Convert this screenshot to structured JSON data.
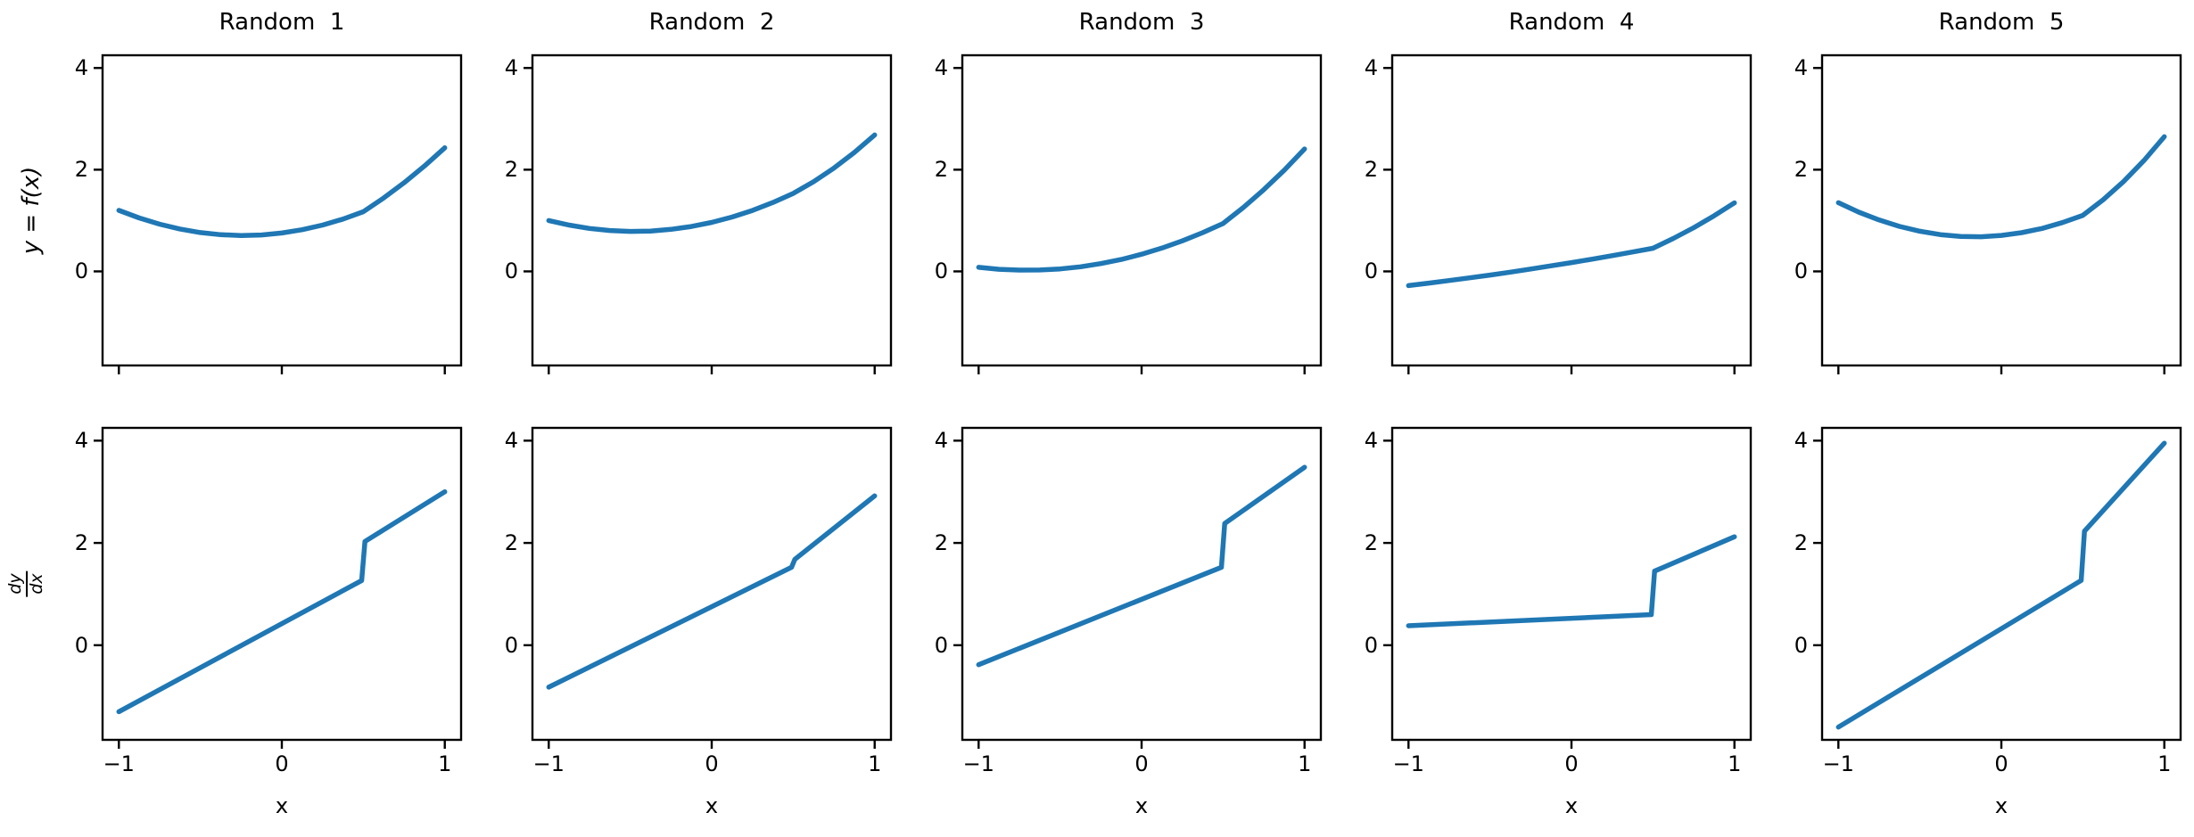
{
  "figure": {
    "background_color": "#ffffff",
    "axis_color": "#000000",
    "line_color": "#1f77b4",
    "rows": 2,
    "cols": 5
  },
  "chart_data": [
    {
      "type": "line",
      "row": 0,
      "col": 0,
      "title": "Random  1",
      "ylabel": "y = f(x)",
      "xlim": [
        -1.1,
        1.1
      ],
      "ylim": [
        -1.85,
        4.25
      ],
      "xticks": [
        -1,
        0,
        1
      ],
      "yticks": [
        0,
        2,
        4
      ],
      "xtick_labels": [
        "−1",
        "0",
        "1"
      ],
      "ytick_labels": [
        "0",
        "2",
        "4"
      ],
      "x": [
        -1,
        -0.875,
        -0.75,
        -0.625,
        -0.5,
        -0.375,
        -0.25,
        -0.125,
        0,
        0.125,
        0.25,
        0.375,
        0.5,
        0.625,
        0.75,
        0.875,
        1
      ],
      "y": [
        1.2,
        1.051,
        0.928,
        0.833,
        0.764,
        0.721,
        0.706,
        0.717,
        0.755,
        0.82,
        0.911,
        1.029,
        1.174,
        1.443,
        1.742,
        2.071,
        2.43
      ]
    },
    {
      "type": "line",
      "row": 0,
      "col": 1,
      "title": "Random  2",
      "xlim": [
        -1.1,
        1.1
      ],
      "ylim": [
        -1.85,
        4.25
      ],
      "xticks": [
        -1,
        0,
        1
      ],
      "yticks": [
        0,
        2,
        4
      ],
      "xtick_labels": [
        "−1",
        "0",
        "1"
      ],
      "ytick_labels": [
        "0",
        "2",
        "4"
      ],
      "x": [
        -1,
        -0.875,
        -0.75,
        -0.625,
        -0.5,
        -0.375,
        -0.25,
        -0.125,
        0,
        0.125,
        0.25,
        0.375,
        0.5,
        0.625,
        0.75,
        0.875,
        1
      ],
      "y": [
        1.0,
        0.91,
        0.844,
        0.803,
        0.786,
        0.794,
        0.826,
        0.882,
        0.964,
        1.069,
        1.199,
        1.354,
        1.533,
        1.762,
        2.031,
        2.337,
        2.683
      ]
    },
    {
      "type": "line",
      "row": 0,
      "col": 2,
      "title": "Random  3",
      "xlim": [
        -1.1,
        1.1
      ],
      "ylim": [
        -1.85,
        4.25
      ],
      "xticks": [
        -1,
        0,
        1
      ],
      "yticks": [
        0,
        2,
        4
      ],
      "xtick_labels": [
        "−1",
        "0",
        "1"
      ],
      "ytick_labels": [
        "0",
        "2",
        "4"
      ],
      "x": [
        -1,
        -0.875,
        -0.75,
        -0.625,
        -0.5,
        -0.375,
        -0.25,
        -0.125,
        0,
        0.125,
        0.25,
        0.375,
        0.5,
        0.625,
        0.75,
        0.875,
        1
      ],
      "y": [
        0.08,
        0.042,
        0.025,
        0.027,
        0.049,
        0.091,
        0.153,
        0.235,
        0.337,
        0.458,
        0.6,
        0.761,
        0.942,
        1.257,
        1.606,
        1.989,
        2.407
      ]
    },
    {
      "type": "line",
      "row": 0,
      "col": 3,
      "title": "Random  4",
      "xlim": [
        -1.1,
        1.1
      ],
      "ylim": [
        -1.85,
        4.25
      ],
      "xticks": [
        -1,
        0,
        1
      ],
      "yticks": [
        0,
        2,
        4
      ],
      "xtick_labels": [
        "−1",
        "0",
        "1"
      ],
      "ytick_labels": [
        "0",
        "2",
        "4"
      ],
      "x": [
        -1,
        -0.875,
        -0.75,
        -0.625,
        -0.5,
        -0.375,
        -0.25,
        -0.125,
        0,
        0.125,
        0.25,
        0.375,
        0.5,
        0.625,
        0.75,
        0.875,
        1
      ],
      "y": [
        -0.28,
        -0.231,
        -0.18,
        -0.127,
        -0.072,
        -0.014,
        0.046,
        0.109,
        0.173,
        0.24,
        0.31,
        0.381,
        0.455,
        0.647,
        0.859,
        1.093,
        1.348
      ]
    },
    {
      "type": "line",
      "row": 0,
      "col": 4,
      "title": "Random  5",
      "xlim": [
        -1.1,
        1.1
      ],
      "ylim": [
        -1.85,
        4.25
      ],
      "xticks": [
        -1,
        0,
        1
      ],
      "yticks": [
        0,
        2,
        4
      ],
      "xtick_labels": [
        "−1",
        "0",
        "1"
      ],
      "ytick_labels": [
        "0",
        "2",
        "4"
      ],
      "x": [
        -1,
        -0.875,
        -0.75,
        -0.625,
        -0.5,
        -0.375,
        -0.25,
        -0.125,
        0,
        0.125,
        0.25,
        0.375,
        0.5,
        0.625,
        0.75,
        0.875,
        1
      ],
      "y": [
        1.35,
        1.165,
        1.01,
        0.885,
        0.789,
        0.724,
        0.688,
        0.682,
        0.707,
        0.761,
        0.845,
        0.959,
        1.102,
        1.408,
        1.767,
        2.18,
        2.647
      ]
    },
    {
      "type": "line",
      "row": 1,
      "col": 0,
      "ylabel_frac": {
        "num": "dy",
        "den": "dx"
      },
      "xlabel": "x",
      "xlim": [
        -1.1,
        1.1
      ],
      "ylim": [
        -1.85,
        4.25
      ],
      "xticks": [
        -1,
        0,
        1
      ],
      "yticks": [
        0,
        2,
        4
      ],
      "xtick_labels": [
        "−1",
        "0",
        "1"
      ],
      "ytick_labels": [
        "0",
        "2",
        "4"
      ],
      "x": [
        -1,
        0.49,
        0.51,
        1
      ],
      "y": [
        -1.3,
        1.265,
        2.03,
        3.0
      ]
    },
    {
      "type": "line",
      "row": 1,
      "col": 1,
      "xlabel": "x",
      "xlim": [
        -1.1,
        1.1
      ],
      "ylim": [
        -1.85,
        4.25
      ],
      "xticks": [
        -1,
        0,
        1
      ],
      "yticks": [
        0,
        2,
        4
      ],
      "xtick_labels": [
        "−1",
        "0",
        "1"
      ],
      "ytick_labels": [
        "0",
        "2",
        "4"
      ],
      "x": [
        -1,
        0.49,
        0.51,
        1
      ],
      "y": [
        -0.82,
        1.525,
        1.68,
        2.92
      ]
    },
    {
      "type": "line",
      "row": 1,
      "col": 2,
      "xlabel": "x",
      "xlim": [
        -1.1,
        1.1
      ],
      "ylim": [
        -1.85,
        4.25
      ],
      "xticks": [
        -1,
        0,
        1
      ],
      "yticks": [
        0,
        2,
        4
      ],
      "xtick_labels": [
        "−1",
        "0",
        "1"
      ],
      "ytick_labels": [
        "0",
        "2",
        "4"
      ],
      "x": [
        -1,
        0.49,
        0.51,
        1
      ],
      "y": [
        -0.38,
        1.525,
        2.38,
        3.48
      ]
    },
    {
      "type": "line",
      "row": 1,
      "col": 3,
      "xlabel": "x",
      "xlim": [
        -1.1,
        1.1
      ],
      "ylim": [
        -1.85,
        4.25
      ],
      "xticks": [
        -1,
        0,
        1
      ],
      "yticks": [
        0,
        2,
        4
      ],
      "xtick_labels": [
        "−1",
        "0",
        "1"
      ],
      "ytick_labels": [
        "0",
        "2",
        "4"
      ],
      "x": [
        -1,
        0.49,
        0.51,
        1
      ],
      "y": [
        0.38,
        0.598,
        1.45,
        2.12
      ]
    },
    {
      "type": "line",
      "row": 1,
      "col": 4,
      "xlabel": "x",
      "xlim": [
        -1.1,
        1.1
      ],
      "ylim": [
        -1.85,
        4.25
      ],
      "xticks": [
        -1,
        0,
        1
      ],
      "yticks": [
        0,
        2,
        4
      ],
      "xtick_labels": [
        "−1",
        "0",
        "1"
      ],
      "ytick_labels": [
        "0",
        "2",
        "4"
      ],
      "x": [
        -1,
        0.49,
        0.51,
        1
      ],
      "y": [
        -1.6,
        1.266,
        2.23,
        3.95
      ]
    }
  ]
}
